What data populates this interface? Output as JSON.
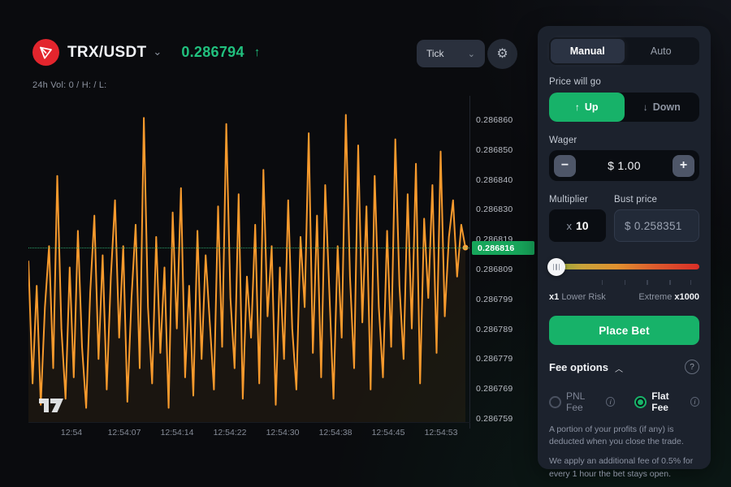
{
  "header": {
    "pair": "TRX/USDT",
    "price": "0.286794",
    "price_arrow": "↑",
    "stats": "24h Vol: 0 / H: / L:",
    "interval": "Tick",
    "price_color": "#21c07e"
  },
  "chart_data": {
    "type": "line",
    "line_color": "#f79a2d",
    "current_price": "0.286816",
    "current_price_norm": 0.545,
    "price_scale": [
      "0.286860",
      "0.286850",
      "0.286840",
      "0.286830",
      "0.286819",
      "0.286809",
      "0.286799",
      "0.286789",
      "0.286779",
      "0.286769",
      "0.286759"
    ],
    "time_labels": [
      "12:54",
      "12:54:07",
      "12:54:14",
      "12:54:22",
      "12:54:30",
      "12:54:38",
      "12:54:45",
      "12:54:53"
    ],
    "series_norm": [
      0.5,
      0.1,
      0.42,
      0.03,
      0.35,
      0.55,
      0.15,
      0.78,
      0.28,
      0.05,
      0.48,
      0.12,
      0.6,
      0.22,
      0.02,
      0.4,
      0.65,
      0.18,
      0.52,
      0.08,
      0.45,
      0.7,
      0.25,
      0.55,
      0.04,
      0.38,
      0.62,
      0.15,
      0.97,
      0.35,
      0.1,
      0.58,
      0.2,
      0.48,
      0.02,
      0.66,
      0.28,
      0.74,
      0.12,
      0.42,
      0.06,
      0.6,
      0.18,
      0.52,
      0.3,
      0.08,
      0.68,
      0.22,
      0.95,
      0.38,
      0.15,
      0.72,
      0.05,
      0.45,
      0.25,
      0.62,
      0.1,
      0.8,
      0.32,
      0.55,
      0.03,
      0.48,
      0.18,
      0.7,
      0.28,
      0.08,
      0.58,
      0.35,
      0.92,
      0.2,
      0.65,
      0.12,
      0.75,
      0.4,
      0.05,
      0.55,
      0.25,
      0.98,
      0.45,
      0.15,
      0.88,
      0.3,
      0.68,
      0.08,
      0.78,
      0.35,
      0.12,
      0.6,
      0.22,
      0.9,
      0.42,
      0.18,
      0.72,
      0.28,
      0.82,
      0.1,
      0.64,
      0.38,
      0.75,
      0.2,
      0.86,
      0.32,
      0.58,
      0.7,
      0.45,
      0.62,
      0.545
    ]
  },
  "panel": {
    "tabs": {
      "manual": "Manual",
      "auto": "Auto"
    },
    "direction": {
      "label": "Price will go",
      "up": "Up",
      "up_arrow": "↑",
      "down": "Down",
      "down_arrow": "↓"
    },
    "wager": {
      "label": "Wager",
      "value": "$ 1.00",
      "minus": "−",
      "plus": "+"
    },
    "multiplier": {
      "label": "Multiplier",
      "prefix": "x",
      "value": "10"
    },
    "bust": {
      "label": "Bust price",
      "value": "$ 0.258351"
    },
    "risk": {
      "left_bold": "x1",
      "left_label": "Lower Risk",
      "right_label": "Extreme",
      "right_bold": "x1000"
    },
    "place_bet_label": "Place Bet",
    "fee": {
      "title": "Fee options",
      "chevron": "︿",
      "help": "?",
      "pnl_label": "PNL Fee",
      "flat_label": "Flat Fee",
      "info": "i",
      "desc1": "A portion of your profits (if any) is deducted when you close the trade.",
      "desc2": "We apply an additional fee of 0.5% for every 1 hour the bet stays open."
    }
  },
  "colors": {
    "accent_green": "#17b269",
    "price_green": "#21c07e",
    "chart_orange": "#f79a2d",
    "tag_green": "#17a65b",
    "panel_bg": "#1c222d",
    "logo_red": "#e3252d"
  }
}
